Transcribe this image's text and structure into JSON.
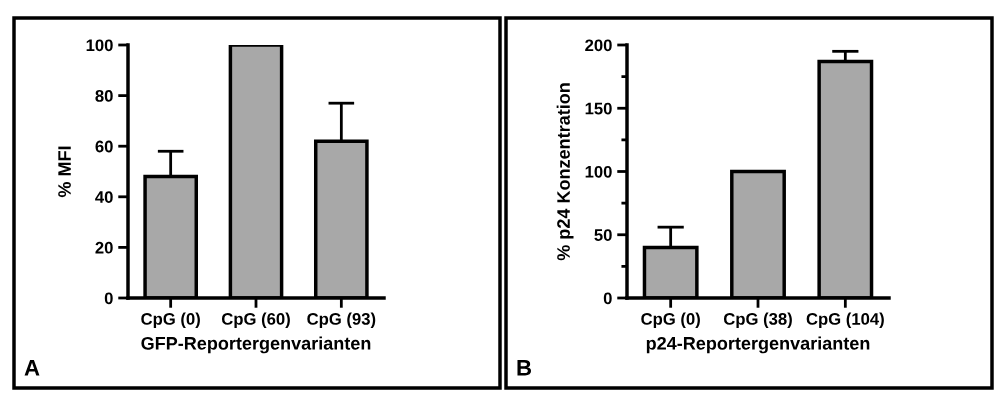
{
  "chart_data": [
    {
      "type": "bar",
      "categories": [
        "CpG (0)",
        "CpG (60)",
        "CpG (93)"
      ],
      "xlabel": "GFP-Reportergenvarianten",
      "ylabel": "% MFI",
      "annotations": [
        "A"
      ],
      "series": [
        {
          "color": "#a8a8a8",
          "values": [
            48,
            100,
            62
          ],
          "errors": [
            [
              48,
              58
            ],
            null,
            [
              62,
              77
            ]
          ]
        }
      ],
      "ylim": [
        0,
        100
      ],
      "yticks": [
        0,
        20,
        40,
        60,
        80,
        100
      ],
      "grid": false,
      "legend": false
    },
    {
      "type": "bar",
      "categories": [
        "CpG (0)",
        "CpG (38)",
        "CpG (104)"
      ],
      "xlabel": "p24-Reportergenvarianten",
      "ylabel": "% p24 Konzentration",
      "annotations": [
        "B"
      ],
      "series": [
        {
          "color": "#a8a8a8",
          "values": [
            40,
            100,
            187
          ],
          "errors": [
            [
              40,
              56
            ],
            null,
            [
              187,
              195
            ]
          ]
        }
      ],
      "ylim": [
        0,
        200
      ],
      "yticks": [
        0,
        {
          "value": 25,
          "label": null
        },
        50,
        {
          "value": 75,
          "label": null
        },
        100,
        {
          "value": 125,
          "label": null
        },
        150,
        {
          "value": 175,
          "label": null
        },
        200
      ],
      "grid": false,
      "legend": false
    }
  ]
}
